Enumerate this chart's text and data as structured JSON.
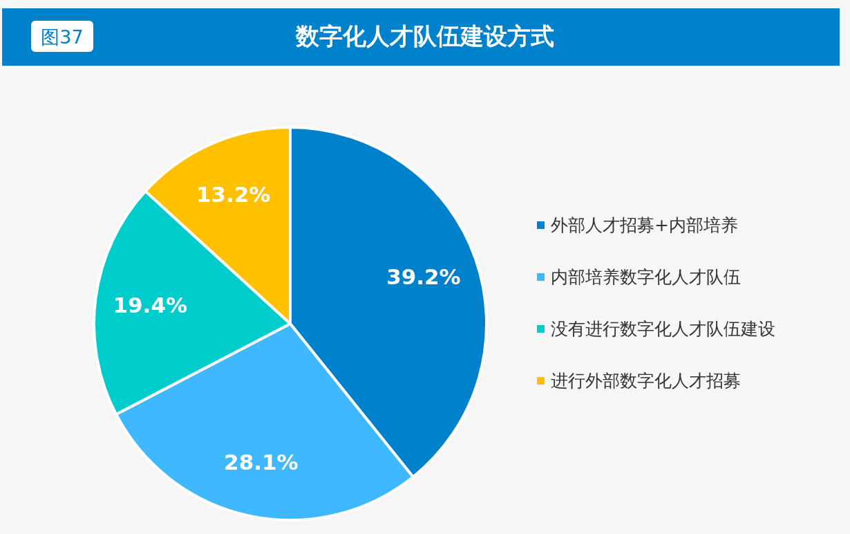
{
  "chart_data": {
    "type": "pie",
    "title": "数字化人才队伍建设方式",
    "annotations": [
      "图37"
    ],
    "categories": [
      "外部人才招募+内部培养",
      "内部培养数字化人才队伍",
      "没有进行数字化人才队伍建设",
      "进行外部数字化人才招募"
    ],
    "values": [
      39.2,
      28.1,
      19.4,
      13.2
    ],
    "colors": [
      "#0081cc",
      "#40b8ff",
      "#00cccc",
      "#ffc000"
    ],
    "value_labels": [
      "39.2%",
      "28.1%",
      "19.4%",
      "13.2%"
    ],
    "legend": "right"
  }
}
